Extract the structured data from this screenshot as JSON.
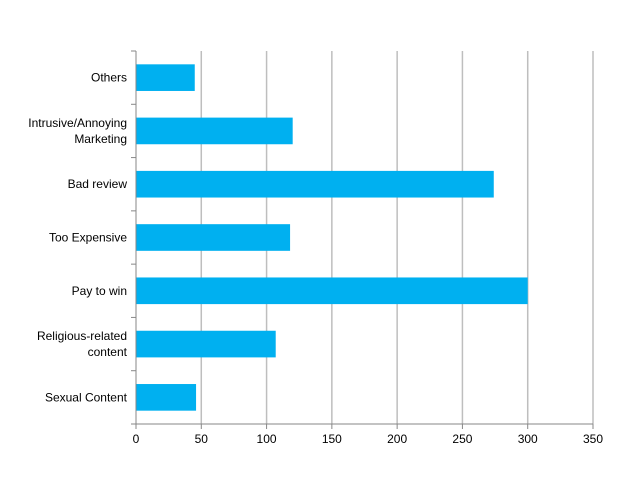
{
  "chart_data": {
    "type": "bar",
    "orientation": "horizontal",
    "title": "",
    "xlabel": "",
    "ylabel": "",
    "categories": [
      [
        "Others"
      ],
      [
        "Intrusive/Annoying",
        "Marketing"
      ],
      [
        "Bad review"
      ],
      [
        "Too Expensive"
      ],
      [
        "Pay to win"
      ],
      [
        "Religious-related",
        "content"
      ],
      [
        "Sexual Content"
      ]
    ],
    "values": [
      45,
      120,
      274,
      118,
      300,
      107,
      46
    ],
    "xlim": [
      0,
      350
    ],
    "xticks": [
      0,
      50,
      100,
      150,
      200,
      250,
      300,
      350
    ],
    "grid": "vertical",
    "legend": "none",
    "colors": {
      "bar": "#00B0F0",
      "grid": "#BEBEBE",
      "axis": "#878787"
    }
  }
}
